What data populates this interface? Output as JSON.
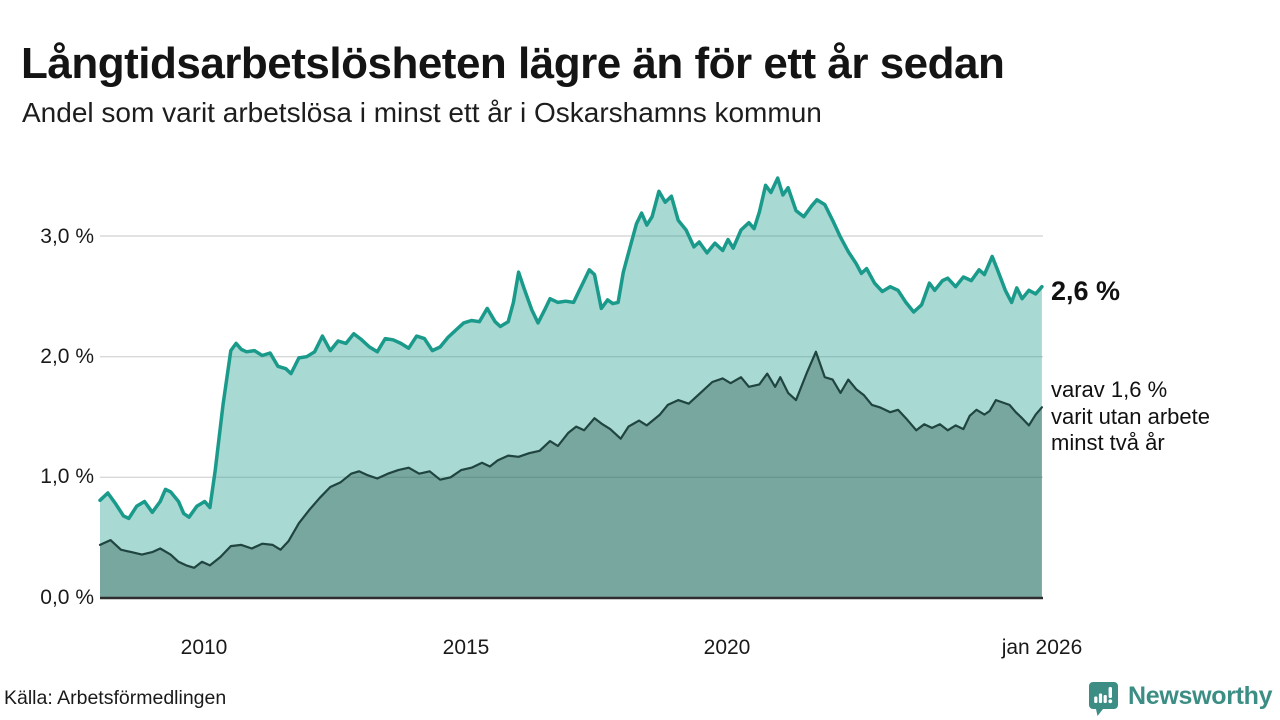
{
  "header": {
    "title": "Långtidsarbetslösheten lägre än för ett år sedan",
    "subtitle": "Andel som varit arbetslösa i minst ett år i Oskarshamns kommun"
  },
  "annotations": {
    "latest_value": "2,6 %",
    "secondary": "varav 1,6 %\nvarit utan arbete\nminst två år"
  },
  "source": {
    "label": "Källa: Arbetsförmedlingen"
  },
  "branding": {
    "logo_text": "Newsworthy",
    "logo_icon": "bar-chart-speech-bubble-icon",
    "brand_color": "#3c8e85"
  },
  "chart_data": {
    "type": "area",
    "title": "Långtidsarbetslösheten lägre än för ett år sedan",
    "subtitle": "Andel som varit arbetslösa i minst ett år i Oskarshamns kommun",
    "grid": true,
    "legend_position": "none (direct annotations at line ends)",
    "x_axis": {
      "unit": "decimal year, monthly data jan 2008 – jan 2026",
      "range": [
        2008.0,
        2026.08
      ],
      "ticks": [
        {
          "t": 2010,
          "label": "2010"
        },
        {
          "t": 2015,
          "label": "2015"
        },
        {
          "t": 2020,
          "label": "2020"
        },
        {
          "t": 2026,
          "label": "jan 2026"
        }
      ]
    },
    "y_axis": {
      "unit": "%",
      "range": [
        0,
        3.6
      ],
      "ticks": [
        {
          "v": 0,
          "label": "0,0 %"
        },
        {
          "v": 1,
          "label": "1,0 %"
        },
        {
          "v": 2,
          "label": "2,0 %"
        },
        {
          "v": 3,
          "label": "3,0 %"
        }
      ]
    },
    "series": [
      {
        "name": "Andel arbetslösa minst ett år",
        "latest_label": "2,6 %",
        "line_color": "#1a9a8b",
        "fill_color": "rgba(26,154,139,0.38)",
        "line_width": 3.5,
        "points": [
          [
            2008.0,
            0.81
          ],
          [
            2008.15,
            0.87
          ],
          [
            2008.3,
            0.78
          ],
          [
            2008.45,
            0.68
          ],
          [
            2008.55,
            0.66
          ],
          [
            2008.7,
            0.76
          ],
          [
            2008.85,
            0.8
          ],
          [
            2009.0,
            0.71
          ],
          [
            2009.15,
            0.8
          ],
          [
            2009.25,
            0.9
          ],
          [
            2009.35,
            0.88
          ],
          [
            2009.5,
            0.8
          ],
          [
            2009.6,
            0.7
          ],
          [
            2009.7,
            0.67
          ],
          [
            2009.85,
            0.76
          ],
          [
            2010.0,
            0.8
          ],
          [
            2010.1,
            0.75
          ],
          [
            2010.2,
            1.05
          ],
          [
            2010.35,
            1.6
          ],
          [
            2010.5,
            2.05
          ],
          [
            2010.6,
            2.11
          ],
          [
            2010.7,
            2.06
          ],
          [
            2010.8,
            2.04
          ],
          [
            2010.95,
            2.05
          ],
          [
            2011.1,
            2.01
          ],
          [
            2011.25,
            2.03
          ],
          [
            2011.4,
            1.92
          ],
          [
            2011.55,
            1.9
          ],
          [
            2011.65,
            1.86
          ],
          [
            2011.8,
            1.99
          ],
          [
            2011.95,
            2.0
          ],
          [
            2012.1,
            2.04
          ],
          [
            2012.25,
            2.17
          ],
          [
            2012.4,
            2.05
          ],
          [
            2012.55,
            2.13
          ],
          [
            2012.7,
            2.11
          ],
          [
            2012.85,
            2.19
          ],
          [
            2013.0,
            2.14
          ],
          [
            2013.15,
            2.08
          ],
          [
            2013.3,
            2.04
          ],
          [
            2013.45,
            2.15
          ],
          [
            2013.6,
            2.14
          ],
          [
            2013.75,
            2.11
          ],
          [
            2013.9,
            2.07
          ],
          [
            2014.05,
            2.17
          ],
          [
            2014.2,
            2.15
          ],
          [
            2014.35,
            2.05
          ],
          [
            2014.5,
            2.08
          ],
          [
            2014.65,
            2.16
          ],
          [
            2014.8,
            2.22
          ],
          [
            2014.95,
            2.28
          ],
          [
            2015.1,
            2.3
          ],
          [
            2015.25,
            2.29
          ],
          [
            2015.4,
            2.4
          ],
          [
            2015.55,
            2.29
          ],
          [
            2015.65,
            2.25
          ],
          [
            2015.8,
            2.29
          ],
          [
            2015.9,
            2.45
          ],
          [
            2016.0,
            2.7
          ],
          [
            2016.1,
            2.57
          ],
          [
            2016.25,
            2.39
          ],
          [
            2016.37,
            2.28
          ],
          [
            2016.5,
            2.39
          ],
          [
            2016.6,
            2.48
          ],
          [
            2016.75,
            2.45
          ],
          [
            2016.9,
            2.46
          ],
          [
            2017.05,
            2.45
          ],
          [
            2017.15,
            2.54
          ],
          [
            2017.25,
            2.63
          ],
          [
            2017.35,
            2.72
          ],
          [
            2017.45,
            2.68
          ],
          [
            2017.58,
            2.4
          ],
          [
            2017.7,
            2.47
          ],
          [
            2017.8,
            2.44
          ],
          [
            2017.9,
            2.45
          ],
          [
            2018.0,
            2.7
          ],
          [
            2018.1,
            2.86
          ],
          [
            2018.25,
            3.1
          ],
          [
            2018.35,
            3.19
          ],
          [
            2018.45,
            3.09
          ],
          [
            2018.55,
            3.16
          ],
          [
            2018.68,
            3.37
          ],
          [
            2018.8,
            3.28
          ],
          [
            2018.92,
            3.33
          ],
          [
            2019.05,
            3.13
          ],
          [
            2019.2,
            3.05
          ],
          [
            2019.35,
            2.91
          ],
          [
            2019.45,
            2.95
          ],
          [
            2019.6,
            2.86
          ],
          [
            2019.75,
            2.94
          ],
          [
            2019.9,
            2.88
          ],
          [
            2020.0,
            2.97
          ],
          [
            2020.1,
            2.9
          ],
          [
            2020.25,
            3.05
          ],
          [
            2020.4,
            3.11
          ],
          [
            2020.5,
            3.06
          ],
          [
            2020.6,
            3.2
          ],
          [
            2020.72,
            3.42
          ],
          [
            2020.82,
            3.36
          ],
          [
            2020.95,
            3.48
          ],
          [
            2021.05,
            3.34
          ],
          [
            2021.15,
            3.4
          ],
          [
            2021.3,
            3.21
          ],
          [
            2021.45,
            3.16
          ],
          [
            2021.6,
            3.25
          ],
          [
            2021.7,
            3.3
          ],
          [
            2021.85,
            3.26
          ],
          [
            2022.0,
            3.13
          ],
          [
            2022.15,
            2.99
          ],
          [
            2022.3,
            2.87
          ],
          [
            2022.45,
            2.77
          ],
          [
            2022.55,
            2.69
          ],
          [
            2022.65,
            2.73
          ],
          [
            2022.8,
            2.61
          ],
          [
            2022.95,
            2.54
          ],
          [
            2023.1,
            2.58
          ],
          [
            2023.25,
            2.55
          ],
          [
            2023.4,
            2.45
          ],
          [
            2023.55,
            2.37
          ],
          [
            2023.7,
            2.43
          ],
          [
            2023.85,
            2.61
          ],
          [
            2023.95,
            2.55
          ],
          [
            2024.1,
            2.63
          ],
          [
            2024.2,
            2.65
          ],
          [
            2024.35,
            2.58
          ],
          [
            2024.5,
            2.66
          ],
          [
            2024.65,
            2.63
          ],
          [
            2024.8,
            2.72
          ],
          [
            2024.9,
            2.68
          ],
          [
            2025.05,
            2.83
          ],
          [
            2025.15,
            2.72
          ],
          [
            2025.3,
            2.55
          ],
          [
            2025.42,
            2.45
          ],
          [
            2025.52,
            2.57
          ],
          [
            2025.62,
            2.48
          ],
          [
            2025.75,
            2.55
          ],
          [
            2025.88,
            2.52
          ],
          [
            2026.0,
            2.58
          ]
        ]
      },
      {
        "name": "varav utan arbete minst två år",
        "latest_label": "1,6 %",
        "line_color": "#20443f",
        "fill_color": "rgba(31,74,67,0.35)",
        "line_width": 2.2,
        "points": [
          [
            2008.0,
            0.44
          ],
          [
            2008.2,
            0.48
          ],
          [
            2008.4,
            0.4
          ],
          [
            2008.6,
            0.38
          ],
          [
            2008.8,
            0.36
          ],
          [
            2009.0,
            0.38
          ],
          [
            2009.15,
            0.41
          ],
          [
            2009.35,
            0.36
          ],
          [
            2009.5,
            0.3
          ],
          [
            2009.65,
            0.27
          ],
          [
            2009.8,
            0.25
          ],
          [
            2009.95,
            0.3
          ],
          [
            2010.1,
            0.27
          ],
          [
            2010.3,
            0.34
          ],
          [
            2010.5,
            0.43
          ],
          [
            2010.7,
            0.44
          ],
          [
            2010.9,
            0.41
          ],
          [
            2011.1,
            0.45
          ],
          [
            2011.3,
            0.44
          ],
          [
            2011.45,
            0.4
          ],
          [
            2011.6,
            0.47
          ],
          [
            2011.8,
            0.62
          ],
          [
            2012.0,
            0.73
          ],
          [
            2012.2,
            0.83
          ],
          [
            2012.4,
            0.92
          ],
          [
            2012.6,
            0.96
          ],
          [
            2012.8,
            1.03
          ],
          [
            2012.95,
            1.05
          ],
          [
            2013.1,
            1.02
          ],
          [
            2013.3,
            0.99
          ],
          [
            2013.5,
            1.03
          ],
          [
            2013.7,
            1.06
          ],
          [
            2013.9,
            1.08
          ],
          [
            2014.1,
            1.03
          ],
          [
            2014.3,
            1.05
          ],
          [
            2014.5,
            0.98
          ],
          [
            2014.7,
            1.0
          ],
          [
            2014.9,
            1.06
          ],
          [
            2015.1,
            1.08
          ],
          [
            2015.3,
            1.12
          ],
          [
            2015.45,
            1.09
          ],
          [
            2015.6,
            1.14
          ],
          [
            2015.8,
            1.18
          ],
          [
            2016.0,
            1.17
          ],
          [
            2016.2,
            1.2
          ],
          [
            2016.4,
            1.22
          ],
          [
            2016.6,
            1.3
          ],
          [
            2016.75,
            1.26
          ],
          [
            2016.95,
            1.37
          ],
          [
            2017.1,
            1.42
          ],
          [
            2017.25,
            1.39
          ],
          [
            2017.45,
            1.49
          ],
          [
            2017.6,
            1.44
          ],
          [
            2017.75,
            1.4
          ],
          [
            2017.95,
            1.32
          ],
          [
            2018.1,
            1.42
          ],
          [
            2018.3,
            1.47
          ],
          [
            2018.45,
            1.43
          ],
          [
            2018.7,
            1.52
          ],
          [
            2018.85,
            1.6
          ],
          [
            2019.05,
            1.64
          ],
          [
            2019.25,
            1.61
          ],
          [
            2019.5,
            1.71
          ],
          [
            2019.7,
            1.79
          ],
          [
            2019.9,
            1.82
          ],
          [
            2020.05,
            1.78
          ],
          [
            2020.25,
            1.83
          ],
          [
            2020.4,
            1.75
          ],
          [
            2020.6,
            1.77
          ],
          [
            2020.75,
            1.86
          ],
          [
            2020.9,
            1.75
          ],
          [
            2021.0,
            1.83
          ],
          [
            2021.15,
            1.7
          ],
          [
            2021.3,
            1.64
          ],
          [
            2021.5,
            1.86
          ],
          [
            2021.68,
            2.04
          ],
          [
            2021.85,
            1.83
          ],
          [
            2022.0,
            1.81
          ],
          [
            2022.15,
            1.7
          ],
          [
            2022.3,
            1.81
          ],
          [
            2022.45,
            1.73
          ],
          [
            2022.6,
            1.68
          ],
          [
            2022.75,
            1.6
          ],
          [
            2022.9,
            1.58
          ],
          [
            2023.1,
            1.54
          ],
          [
            2023.25,
            1.56
          ],
          [
            2023.4,
            1.49
          ],
          [
            2023.6,
            1.39
          ],
          [
            2023.75,
            1.44
          ],
          [
            2023.9,
            1.41
          ],
          [
            2024.05,
            1.44
          ],
          [
            2024.2,
            1.39
          ],
          [
            2024.35,
            1.43
          ],
          [
            2024.5,
            1.4
          ],
          [
            2024.62,
            1.51
          ],
          [
            2024.75,
            1.56
          ],
          [
            2024.9,
            1.52
          ],
          [
            2025.0,
            1.55
          ],
          [
            2025.12,
            1.64
          ],
          [
            2025.25,
            1.62
          ],
          [
            2025.38,
            1.6
          ],
          [
            2025.5,
            1.54
          ],
          [
            2025.62,
            1.49
          ],
          [
            2025.75,
            1.43
          ],
          [
            2025.88,
            1.52
          ],
          [
            2026.0,
            1.58
          ]
        ]
      }
    ]
  }
}
